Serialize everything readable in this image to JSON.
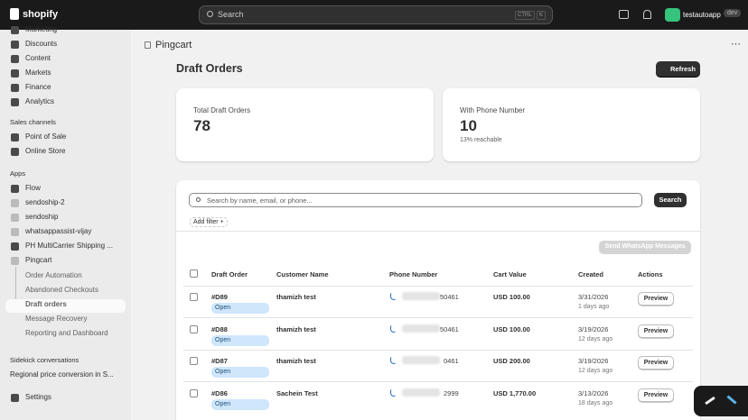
{
  "topbar": {
    "logo": "shopify",
    "search": "Search",
    "shortcut": [
      "CTRL",
      "K"
    ],
    "store": "testautoapp",
    "badge": "dev"
  },
  "sidebar": {
    "main": [
      "Marketing",
      "Discounts",
      "Content",
      "Markets",
      "Finance",
      "Analytics"
    ],
    "sales_channels": {
      "heading": "Sales channels",
      "items": [
        "Point of Sale",
        "Online Store"
      ]
    },
    "apps": {
      "heading": "Apps",
      "items": [
        "Flow",
        "sendoship-2",
        "sendoship",
        "whatsappassist-vijay",
        "PH MultiCarrier Shipping ...",
        "Pingcart"
      ],
      "sub": [
        "Order Automation",
        "Abandoned Checkouts",
        "Draft orders",
        "Message Recovery",
        "Reporting and Dashboard"
      ]
    },
    "sidekick": {
      "heading": "Sidekick conversations",
      "items": [
        "Regional price conversion in S..."
      ]
    },
    "settings": "Settings"
  },
  "app": {
    "name": "Pingcart",
    "title": "Draft Orders",
    "refresh": "Refresh"
  },
  "stats": [
    {
      "label": "Total Draft Orders",
      "value": "78"
    },
    {
      "label": "With Phone Number",
      "value": "10",
      "note": "13% reachable"
    }
  ],
  "table": {
    "search_placeholder": "Search by name, email, or phone...",
    "search_button": "Search",
    "add_filter": "Add filter +",
    "send_button": "Send WhatsApp Messages",
    "columns": [
      "Draft Order",
      "Customer Name",
      "Phone Number",
      "Cart Value",
      "Created",
      "Actions"
    ],
    "rows": [
      {
        "id": "#D89",
        "status": "Open",
        "customer": "thamizh test",
        "phone": "50461",
        "value": "USD 100.00",
        "date": "3/31/2026",
        "ago": "1 days ago",
        "action": "Preview"
      },
      {
        "id": "#D88",
        "status": "Open",
        "customer": "thamizh test",
        "phone": "50461",
        "value": "USD 100.00",
        "date": "3/19/2026",
        "ago": "12 days ago",
        "action": "Preview"
      },
      {
        "id": "#D87",
        "status": "Open",
        "customer": "thamizh test",
        "phone": "0461",
        "value": "USD 200.00",
        "date": "3/19/2026",
        "ago": "12 days ago",
        "action": "Preview"
      },
      {
        "id": "#D86",
        "status": "Open",
        "customer": "Sachein Test",
        "phone": "2999",
        "value": "USD 1,770.00",
        "date": "3/13/2026",
        "ago": "18 days ago",
        "action": "Preview"
      }
    ]
  }
}
